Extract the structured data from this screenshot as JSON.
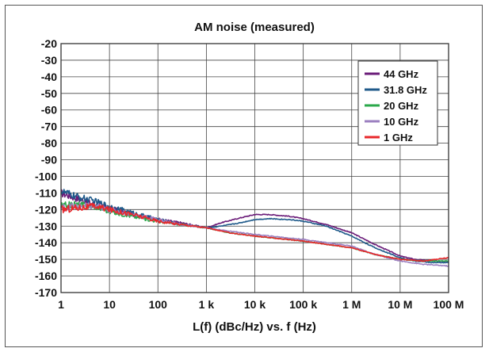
{
  "chart_data": {
    "type": "line",
    "title": "AM noise (measured)",
    "xlabel": "L(f) (dBc/Hz) vs. f (Hz)",
    "ylabel": "",
    "x_scale": "log",
    "xlim": [
      1,
      100000000
    ],
    "ylim": [
      -170,
      -20
    ],
    "grid": true,
    "legend_position": "top-right",
    "x_ticks": [
      {
        "value": 1,
        "label": "1"
      },
      {
        "value": 10,
        "label": "10"
      },
      {
        "value": 100,
        "label": "100"
      },
      {
        "value": 1000,
        "label": "1 k"
      },
      {
        "value": 10000,
        "label": "10 k"
      },
      {
        "value": 100000,
        "label": "100 k"
      },
      {
        "value": 1000000,
        "label": "1 M"
      },
      {
        "value": 10000000,
        "label": "10 M"
      },
      {
        "value": 100000000,
        "label": "100 M"
      }
    ],
    "y_ticks": [
      -20,
      -30,
      -40,
      -50,
      -60,
      -70,
      -80,
      -90,
      -100,
      -110,
      -120,
      -130,
      -140,
      -150,
      -160,
      -170
    ],
    "series": [
      {
        "name": "44 GHz",
        "color": "#6a1b78",
        "points": [
          [
            1,
            -110
          ],
          [
            2,
            -113
          ],
          [
            5,
            -117
          ],
          [
            10,
            -119
          ],
          [
            30,
            -123
          ],
          [
            100,
            -126
          ],
          [
            300,
            -128
          ],
          [
            1000,
            -131
          ],
          [
            2000,
            -128
          ],
          [
            5000,
            -125
          ],
          [
            10000,
            -123
          ],
          [
            20000,
            -123
          ],
          [
            50000,
            -124
          ],
          [
            100000,
            -125.5
          ],
          [
            300000,
            -129
          ],
          [
            1000000,
            -134
          ],
          [
            3000000,
            -141
          ],
          [
            10000000,
            -148
          ],
          [
            20000000,
            -150
          ],
          [
            50000000,
            -151
          ],
          [
            100000000,
            -151
          ]
        ]
      },
      {
        "name": "31.8 GHz",
        "color": "#1f5a8a",
        "points": [
          [
            1,
            -109
          ],
          [
            2,
            -112
          ],
          [
            5,
            -115
          ],
          [
            10,
            -118
          ],
          [
            30,
            -122
          ],
          [
            100,
            -126
          ],
          [
            300,
            -129
          ],
          [
            1000,
            -131
          ],
          [
            2000,
            -130
          ],
          [
            5000,
            -128
          ],
          [
            10000,
            -126
          ],
          [
            20000,
            -125.5
          ],
          [
            50000,
            -126
          ],
          [
            100000,
            -127
          ],
          [
            300000,
            -130
          ],
          [
            1000000,
            -136
          ],
          [
            3000000,
            -143
          ],
          [
            10000000,
            -149
          ],
          [
            20000000,
            -151
          ],
          [
            50000000,
            -152
          ],
          [
            100000000,
            -152
          ]
        ]
      },
      {
        "name": "20 GHz",
        "color": "#2aa84a",
        "points": [
          [
            1,
            -118
          ],
          [
            2,
            -117
          ],
          [
            5,
            -118
          ],
          [
            10,
            -121
          ],
          [
            30,
            -124
          ],
          [
            100,
            -127
          ],
          [
            300,
            -129
          ],
          [
            1000,
            -131
          ],
          [
            3000,
            -134
          ],
          [
            10000,
            -136
          ],
          [
            100000,
            -139
          ],
          [
            1000000,
            -143
          ],
          [
            3000000,
            -147
          ],
          [
            10000000,
            -150
          ],
          [
            30000000,
            -151
          ],
          [
            100000000,
            -151
          ]
        ]
      },
      {
        "name": "10 GHz",
        "color": "#9b7fc0",
        "points": [
          [
            1,
            -119
          ],
          [
            2,
            -118
          ],
          [
            5,
            -118
          ],
          [
            10,
            -120
          ],
          [
            30,
            -123
          ],
          [
            100,
            -126
          ],
          [
            300,
            -129
          ],
          [
            1000,
            -131
          ],
          [
            3000,
            -133
          ],
          [
            10000,
            -135
          ],
          [
            100000,
            -138
          ],
          [
            1000000,
            -142
          ],
          [
            3000000,
            -147
          ],
          [
            10000000,
            -151
          ],
          [
            30000000,
            -153
          ],
          [
            100000000,
            -154
          ]
        ]
      },
      {
        "name": "1 GHz",
        "color": "#e8282b",
        "points": [
          [
            1,
            -120
          ],
          [
            2,
            -119
          ],
          [
            5,
            -118
          ],
          [
            10,
            -120
          ],
          [
            30,
            -123
          ],
          [
            100,
            -127
          ],
          [
            300,
            -129
          ],
          [
            1000,
            -131
          ],
          [
            3000,
            -134
          ],
          [
            10000,
            -136
          ],
          [
            100000,
            -139
          ],
          [
            1000000,
            -143
          ],
          [
            3000000,
            -147
          ],
          [
            10000000,
            -150
          ],
          [
            30000000,
            -151
          ],
          [
            100000000,
            -149
          ]
        ]
      }
    ]
  }
}
